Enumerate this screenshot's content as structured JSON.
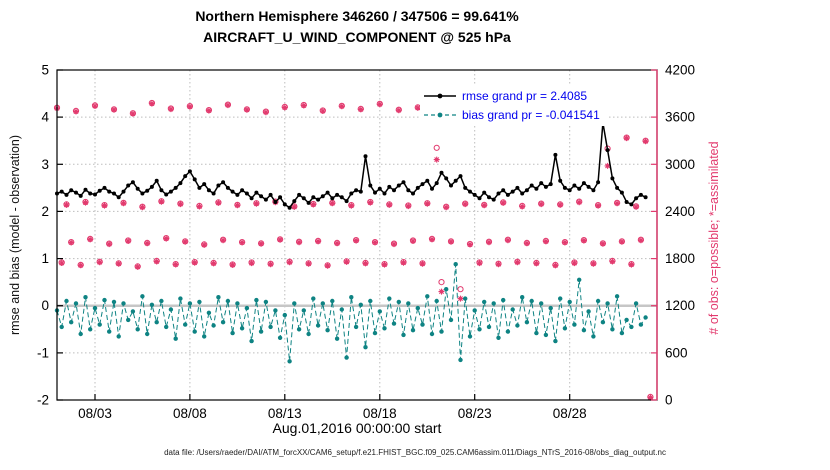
{
  "colors": {
    "rmse": "#000000",
    "bias": "#0e8383",
    "obs": "#e23a6e",
    "legend_text": "#0000ee",
    "grid": "#bdbdbd",
    "zero_line": "#c6c6c6"
  },
  "chart_data": {
    "type": "line",
    "title_line1": "Northern Hemisphere 346260 / 347506 = 99.641%",
    "title_line2": "AIRCRAFT_U_WIND_COMPONENT @ 525 hPa",
    "xlabel": "Aug.01,2016 00:00:00 start",
    "ylabel_left": "rmse and bias (model - observation)",
    "ylabel_right": "# of obs: o=possible; *=assimilated",
    "caption": "data file: /Users/raeder/DAI/ATM_forcXX/CAM6_setup/f.e21.FHIST_BGC.f09_025.CAM6assim.011/Diags_NTrS_2016-08/obs_diag_output.nc",
    "time_axis_note": "t in days since Aug 1, 2016 00:00 UTC, 6-hourly bins",
    "t_step": 0.25,
    "xlim": [
      0,
      31.6
    ],
    "ylim_left": [
      -2,
      5
    ],
    "ylim_right": [
      0,
      4200
    ],
    "yticks_left": [
      -2,
      -1,
      0,
      1,
      2,
      3,
      4,
      5
    ],
    "yticks_right": [
      0,
      600,
      1200,
      1800,
      2400,
      3000,
      3600,
      4200
    ],
    "xticks": [
      {
        "t": 2,
        "label": "08/03"
      },
      {
        "t": 7,
        "label": "08/08"
      },
      {
        "t": 12,
        "label": "08/13"
      },
      {
        "t": 17,
        "label": "08/18"
      },
      {
        "t": 22,
        "label": "08/23"
      },
      {
        "t": 27,
        "label": "08/28"
      }
    ],
    "legend": [
      {
        "series": "rmse",
        "label": "rmse grand pr = 2.4085",
        "value": 2.4085
      },
      {
        "series": "bias",
        "label": "bias grand pr = -0.041541",
        "value": -0.041541
      }
    ],
    "series": [
      {
        "name": "rmse",
        "axis": "left",
        "style": "solid-line-dots",
        "values": [
          2.38,
          2.42,
          2.35,
          2.45,
          2.4,
          2.33,
          2.46,
          2.38,
          2.36,
          2.44,
          2.5,
          2.42,
          2.38,
          2.3,
          2.42,
          2.55,
          2.62,
          2.48,
          2.38,
          2.44,
          2.52,
          2.65,
          2.45,
          2.36,
          2.42,
          2.5,
          2.6,
          2.75,
          2.85,
          2.68,
          2.5,
          2.58,
          2.45,
          2.38,
          2.55,
          2.62,
          2.5,
          2.42,
          2.35,
          2.45,
          2.38,
          2.28,
          2.4,
          2.32,
          2.25,
          2.35,
          2.2,
          2.3,
          2.15,
          2.08,
          2.22,
          2.35,
          2.28,
          2.18,
          2.3,
          2.25,
          2.32,
          2.4,
          2.28,
          2.35,
          2.3,
          2.22,
          2.38,
          2.45,
          2.42,
          3.17,
          2.55,
          2.4,
          2.48,
          2.38,
          2.52,
          2.45,
          2.55,
          2.62,
          2.45,
          2.38,
          2.5,
          2.58,
          2.65,
          2.48,
          2.6,
          2.82,
          2.7,
          2.55,
          2.65,
          2.75,
          2.5,
          2.42,
          2.35,
          2.28,
          2.4,
          2.3,
          2.25,
          2.38,
          2.45,
          2.35,
          2.42,
          2.5,
          2.38,
          2.45,
          2.55,
          2.48,
          2.6,
          2.52,
          2.58,
          3.2,
          2.65,
          2.5,
          2.45,
          2.55,
          2.48,
          2.6,
          2.52,
          2.45,
          2.62,
          3.88,
          3.3,
          2.7,
          2.5,
          2.4,
          2.2,
          2.15,
          2.28,
          2.35,
          2.3
        ]
      },
      {
        "name": "bias",
        "axis": "left",
        "style": "dashed-line-dots",
        "values": [
          -0.1,
          -0.45,
          0.1,
          -0.35,
          0.05,
          -0.6,
          0.18,
          -0.5,
          -0.05,
          -0.4,
          0.12,
          -0.55,
          0.08,
          -0.65,
          0.05,
          -0.3,
          -0.12,
          -0.5,
          0.2,
          -0.6,
          0.02,
          -0.35,
          0.1,
          -0.45,
          -0.08,
          -0.7,
          0.15,
          -0.4,
          0.05,
          -0.55,
          0.08,
          -0.65,
          -0.15,
          -0.42,
          0.18,
          -0.35,
          0.1,
          -0.58,
          0.05,
          -0.48,
          -0.05,
          -0.75,
          0.12,
          -0.55,
          0.08,
          -0.45,
          -0.1,
          -0.68,
          -0.2,
          -1.18,
          0.05,
          -0.5,
          -0.1,
          -0.6,
          0.15,
          -0.42,
          0.05,
          -0.52,
          0.1,
          -0.7,
          -0.08,
          -1.1,
          0.18,
          -0.45,
          0.02,
          -0.88,
          0.1,
          -0.58,
          -0.12,
          -0.48,
          0.15,
          -0.38,
          0.08,
          -0.62,
          0.05,
          -0.52,
          -0.05,
          -0.4,
          0.2,
          -0.6,
          0.1,
          -0.55,
          0.35,
          -0.3,
          0.88,
          -1.15,
          0.15,
          -0.65,
          -0.1,
          -0.5,
          0.08,
          -0.45,
          0.05,
          -0.68,
          0.12,
          -0.55,
          -0.08,
          -0.42,
          0.18,
          -0.35,
          0.1,
          -0.58,
          0.05,
          -0.62,
          -0.05,
          -0.75,
          0.15,
          -0.48,
          0.08,
          -0.4,
          0.55,
          -0.52,
          -0.12,
          -0.65,
          0.1,
          -0.35,
          0.05,
          -0.5,
          0.2,
          -0.58,
          -0.3,
          -0.45,
          0.05,
          -0.4,
          -0.25
        ]
      },
      {
        "name": "possible",
        "axis": "right",
        "marker": "circle",
        "values": [
          3720,
          1750,
          2490,
          2010,
          3680,
          1720,
          2520,
          2050,
          3750,
          1760,
          2480,
          1990,
          3700,
          1740,
          2510,
          2030,
          3650,
          1700,
          2460,
          2000,
          3780,
          1770,
          2530,
          2060,
          3710,
          1730,
          2500,
          2020,
          3740,
          1755,
          2470,
          1980,
          3690,
          1745,
          2515,
          2040,
          3760,
          1725,
          2485,
          2010,
          3700,
          1750,
          2505,
          1995,
          3670,
          1735,
          2525,
          2045,
          3730,
          1760,
          2465,
          2015,
          3755,
          1740,
          2495,
          2025,
          3685,
          1715,
          2510,
          2000,
          3745,
          1765,
          2480,
          2035,
          3705,
          1745,
          2520,
          2010,
          3770,
          1730,
          2490,
          1990,
          3695,
          1755,
          2475,
          2030,
          3725,
          1740,
          2505,
          2050,
          3210,
          1500,
          2460,
          2020,
          3650,
          1410,
          2500,
          1985,
          3715,
          1750,
          2485,
          2015,
          3680,
          1735,
          2515,
          2040,
          3740,
          1760,
          2470,
          2000,
          3700,
          1745,
          2500,
          2025,
          3760,
          1720,
          2490,
          2010,
          3690,
          1750,
          2525,
          2035,
          3730,
          1740,
          2480,
          1995,
          3200,
          1770,
          2510,
          2020,
          3340,
          1730,
          2465,
          2040,
          3300,
          40
        ]
      },
      {
        "name": "assimilated",
        "axis": "right",
        "marker": "asterisk",
        "values": [
          3712,
          1744,
          2483,
          2004,
          3672,
          1714,
          2513,
          2044,
          3742,
          1753,
          2474,
          1984,
          3693,
          1734,
          2503,
          2024,
          3643,
          1694,
          2453,
          1994,
          3772,
          1763,
          2523,
          2054,
          3703,
          1724,
          2493,
          2014,
          3733,
          1748,
          2463,
          1974,
          3683,
          1738,
          2508,
          2034,
          3753,
          1719,
          2478,
          2004,
          3693,
          1743,
          2498,
          1989,
          3663,
          1728,
          2518,
          2039,
          3723,
          1753,
          2458,
          2009,
          3748,
          1733,
          2488,
          2019,
          3678,
          1708,
          2503,
          1994,
          3738,
          1758,
          2473,
          2029,
          3698,
          1738,
          2513,
          2004,
          3763,
          1723,
          2483,
          1984,
          3688,
          1748,
          2468,
          2024,
          3718,
          1733,
          2498,
          2044,
          3060,
          1380,
          2453,
          2014,
          3643,
          1290,
          2493,
          1979,
          3708,
          1743,
          2478,
          2009,
          3673,
          1728,
          2508,
          2034,
          3733,
          1753,
          2463,
          1994,
          3693,
          1738,
          2493,
          2019,
          3753,
          1713,
          2483,
          2004,
          3683,
          1743,
          2518,
          2029,
          3723,
          1733,
          2473,
          1989,
          2980,
          1763,
          2503,
          2014,
          3333,
          1723,
          2458,
          2034,
          3293,
          30
        ]
      }
    ]
  }
}
